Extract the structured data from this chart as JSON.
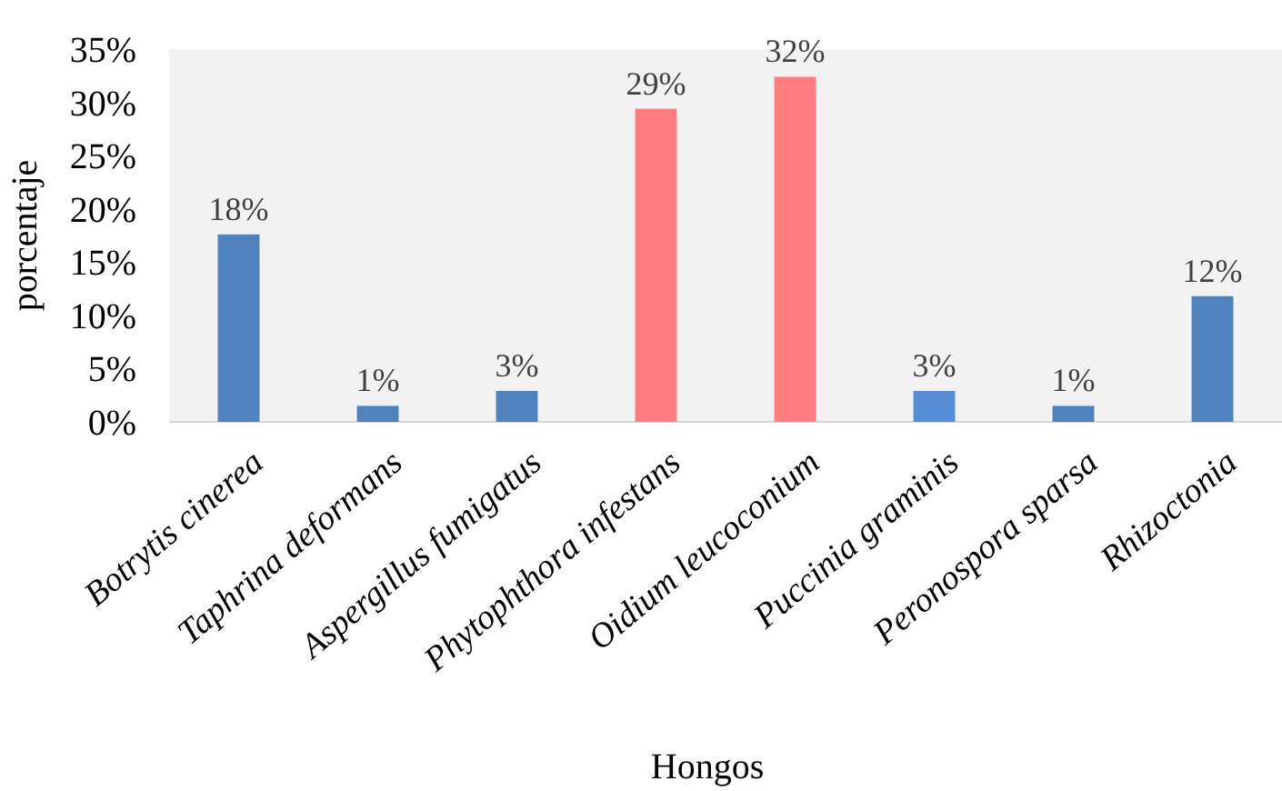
{
  "chart_data": {
    "type": "bar",
    "xlabel": "Hongos",
    "ylabel": "porcentaje",
    "categories": [
      "Botrytis cinerea",
      "Taphrina deformans",
      "Aspergillus fumigatus",
      "Phytophthora infestans",
      "Oidium leucoconium",
      "Puccinia graminis",
      "Peronospora sparsa",
      "Rhizoctonia"
    ],
    "values": [
      17.6,
      1.5,
      2.9,
      29.4,
      32.4,
      2.9,
      1.5,
      11.8
    ],
    "colors": [
      "#4f81bd",
      "#4f81bd",
      "#4f81bd",
      "#ff7c80",
      "#ff7c80",
      "#558ed5",
      "#4f81bd",
      "#4f81bd"
    ],
    "value_labels": [
      "18%",
      "1%",
      "3%",
      "29%",
      "32%",
      "3%",
      "1%",
      "12%"
    ],
    "ylim": [
      0,
      35
    ],
    "yticks": [
      {
        "value": 0,
        "label": "0%"
      },
      {
        "value": 5,
        "label": "5%"
      },
      {
        "value": 10,
        "label": "10%"
      },
      {
        "value": 15,
        "label": "15%"
      },
      {
        "value": 20,
        "label": "20%"
      },
      {
        "value": 25,
        "label": "25%"
      },
      {
        "value": 30,
        "label": "30%"
      },
      {
        "value": 35,
        "label": "35%"
      }
    ],
    "grid": false
  }
}
